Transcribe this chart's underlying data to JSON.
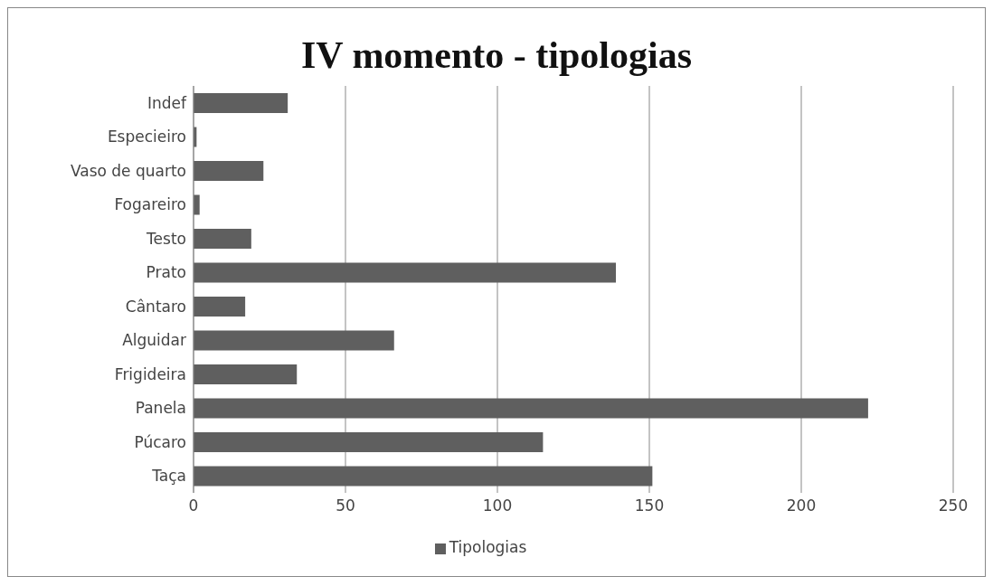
{
  "chart_data": {
    "type": "bar",
    "orientation": "horizontal",
    "title": "IV momento - tipologias",
    "categories": [
      "Indef",
      "Especieiro",
      "Vaso de quarto",
      "Fogareiro",
      "Testo",
      "Prato",
      "Cântaro",
      "Alguidar",
      "Frigideira",
      "Panela",
      "Púcaro",
      "Taça"
    ],
    "series": [
      {
        "name": "Tipologias",
        "color": "#5f5f5f",
        "values": [
          31,
          1,
          23,
          2,
          19,
          139,
          17,
          66,
          34,
          222,
          115,
          151
        ]
      }
    ],
    "xlim": [
      0,
      250
    ],
    "xticks": [
      0,
      50,
      100,
      150,
      200,
      250
    ],
    "grid": "x",
    "legend": "bottom"
  }
}
